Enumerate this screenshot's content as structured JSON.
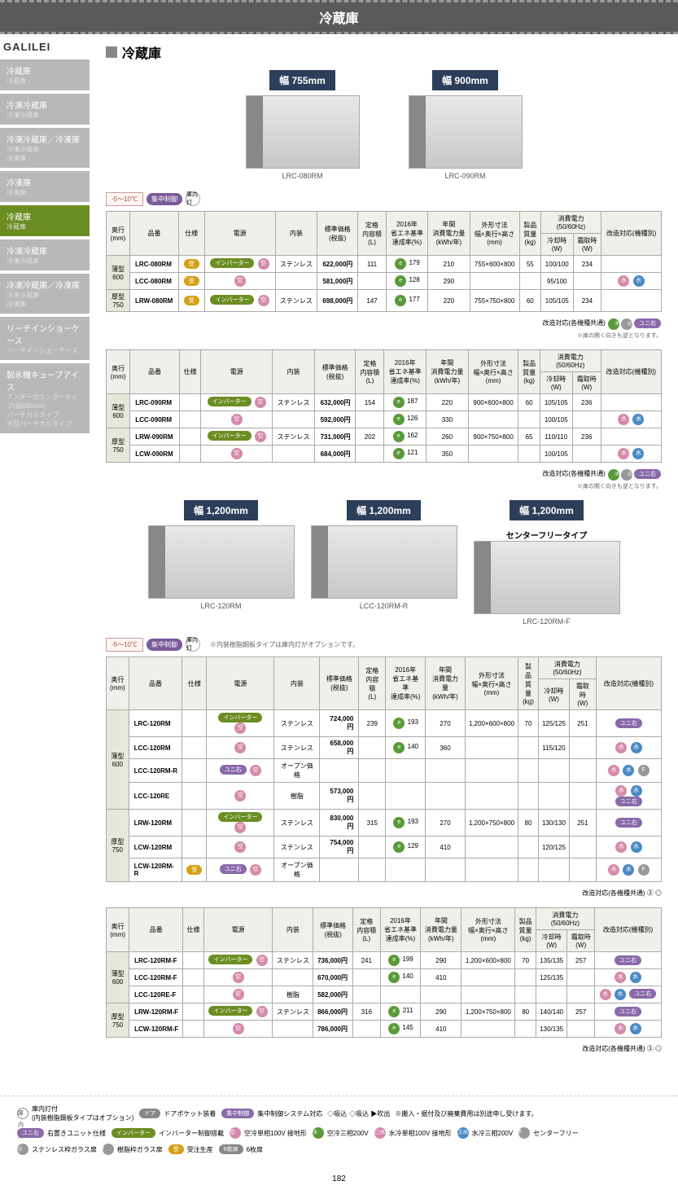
{
  "header": {
    "title": "冷蔵庫"
  },
  "brand": "GALILEI",
  "nav": [
    {
      "label": "冷蔵庫",
      "sub": "冷蔵庫",
      "active": false
    },
    {
      "label": "冷凍冷蔵庫",
      "sub": "冷凍冷蔵庫",
      "active": false
    },
    {
      "label": "冷凍冷蔵庫／冷凍庫",
      "sub": "冷凍冷蔵庫\n冷凍庫",
      "active": false
    },
    {
      "label": "冷凍庫",
      "sub": "冷凍庫",
      "active": false
    },
    {
      "label": "冷蔵庫",
      "sub": "冷蔵庫",
      "active": true
    },
    {
      "label": "冷凍冷蔵庫",
      "sub": "冷凍冷蔵庫",
      "active": false
    },
    {
      "label": "冷凍冷蔵庫／冷凍庫",
      "sub": "冷凍冷蔵庫\n冷凍庫",
      "active": false
    },
    {
      "label": "リーチインショーケース",
      "sub": "リーチインショーケース",
      "active": false
    },
    {
      "label": "製氷機キューブアイス",
      "sub": "アンダーカウンタータイプ(幅630mm)\nバーチカルタイプ\n大型バーチカルタイプ",
      "active": false
    }
  ],
  "section_title": "冷蔵庫",
  "temp_range": "-5〜10℃",
  "badge_purple": "集中制御",
  "badge_light": "庫内灯",
  "products_1": [
    {
      "width_label": "幅 755mm",
      "model": "LRC-080RM"
    },
    {
      "width_label": "幅 900mm",
      "model": "LRC-090RM"
    }
  ],
  "products_2": [
    {
      "width_label": "幅 1,200mm",
      "model": "LRC-120RM",
      "subtitle": ""
    },
    {
      "width_label": "幅 1,200mm",
      "model": "LCC-120RM-R",
      "subtitle": ""
    },
    {
      "width_label": "幅 1,200mm",
      "model": "LRC-120RM-F",
      "subtitle": "センターフリータイプ"
    }
  ],
  "cols": {
    "depth": "奥行\n(mm)",
    "model": "品番",
    "spec": "仕様",
    "power": "電源",
    "interior": "内装",
    "price": "標準価格\n(税抜)",
    "capacity": "定格\n内容積\n(L)",
    "energy": "2016年\n省エネ基準\n達成率(%)",
    "annual": "年間\n消費電力量\n(kWh/年)",
    "dims": "外形寸法\n幅×奥行×高さ\n(mm)",
    "weight": "製品\n質量\n(kg)",
    "power_consumption": "消費電力\n(50/60Hz)",
    "cooling": "冷却時\n(W)",
    "defrost": "霜取時\n(W)",
    "remodel": "改造対応(機種別)"
  },
  "table1": {
    "rows": [
      {
        "depth_group": "薄型\n600",
        "model": "LRC-080RM",
        "spec": [
          "受"
        ],
        "power": [
          "インバーター"
        ],
        "interior": "ステンレス",
        "price": "622,000円",
        "capacity": "111",
        "energy": "179",
        "annual": "210",
        "dims": "755×600×800",
        "weight": "55",
        "cool": "100/100",
        "defrost": "234",
        "remodel": ""
      },
      {
        "depth_group": "",
        "model": "LCC-080RM",
        "spec": [
          "受"
        ],
        "power": [],
        "interior": "",
        "price": "581,000円",
        "capacity": "",
        "energy": "128",
        "annual": "290",
        "dims": "",
        "weight": "",
        "cool": "95/100",
        "defrost": "",
        "remodel": "◎水 ③水"
      },
      {
        "depth_group": "厚型\n750",
        "model": "LRW-080RM",
        "spec": [
          "受"
        ],
        "power": [
          "インバーター"
        ],
        "interior": "ステンレス",
        "price": "698,000円",
        "capacity": "147",
        "energy": "177",
        "annual": "220",
        "dims": "755×750×800",
        "weight": "60",
        "cool": "105/105",
        "defrost": "234",
        "remodel": ""
      }
    ]
  },
  "table2": {
    "rows": [
      {
        "depth_group": "薄型\n600",
        "model": "LRC-090RM",
        "spec": [],
        "power": [
          "インバーター"
        ],
        "interior": "ステンレス",
        "price": "632,000円",
        "capacity": "154",
        "energy": "187",
        "annual": "220",
        "dims": "900×600×800",
        "weight": "60",
        "cool": "105/105",
        "defrost": "236",
        "remodel": ""
      },
      {
        "depth_group": "",
        "model": "LCC-090RM",
        "spec": [],
        "power": [],
        "interior": "",
        "price": "592,000円",
        "capacity": "",
        "energy": "126",
        "annual": "330",
        "dims": "",
        "weight": "",
        "cool": "100/105",
        "defrost": "",
        "remodel": "◎水 ③水"
      },
      {
        "depth_group": "厚型\n750",
        "model": "LRW-090RM",
        "spec": [],
        "power": [
          "インバーター"
        ],
        "interior": "ステンレス",
        "price": "731,000円",
        "capacity": "202",
        "energy": "162",
        "annual": "260",
        "dims": "900×750×800",
        "weight": "65",
        "cool": "110/110",
        "defrost": "236",
        "remodel": ""
      },
      {
        "depth_group": "",
        "model": "LCW-090RM",
        "spec": [],
        "power": [],
        "interior": "",
        "price": "684,000円",
        "capacity": "",
        "energy": "121",
        "annual": "350",
        "dims": "",
        "weight": "",
        "cool": "100/105",
        "defrost": "",
        "remodel": "◎水 ③水"
      }
    ]
  },
  "table3": {
    "rows": [
      {
        "depth_group": "薄型\n600",
        "model": "LRC-120RM",
        "spec": [],
        "power": [
          "インバーター"
        ],
        "interior": "ステンレス",
        "price": "724,000円",
        "capacity": "239",
        "energy": "193",
        "annual": "270",
        "dims": "1,200×600×800",
        "weight": "70",
        "cool": "125/125",
        "defrost": "251",
        "remodel": "ユニ右"
      },
      {
        "depth_group": "",
        "model": "LCC-120RM",
        "spec": [],
        "power": [],
        "interior": "ステンレス",
        "price": "658,000円",
        "capacity": "",
        "energy": "140",
        "annual": "360",
        "dims": "",
        "weight": "",
        "cool": "115/120",
        "defrost": "",
        "remodel": "◎水 ③水"
      },
      {
        "depth_group": "",
        "model": "LCC-120RM-R",
        "spec": [],
        "power": [
          "ユニ右"
        ],
        "interior": "オープン価格",
        "price": "",
        "capacity": "",
        "energy": "",
        "annual": "",
        "dims": "",
        "weight": "",
        "cool": "",
        "defrost": "",
        "remodel": "◎水 ③水 F"
      },
      {
        "depth_group": "",
        "model": "LCC-120RE",
        "spec": [],
        "power": [],
        "interior": "樹脂",
        "price": "573,000円",
        "capacity": "",
        "energy": "",
        "annual": "",
        "dims": "",
        "weight": "",
        "cool": "",
        "defrost": "",
        "remodel": "◎水 ③水 ユニ右"
      },
      {
        "depth_group": "厚型\n750",
        "model": "LRW-120RM",
        "spec": [],
        "power": [
          "インバーター"
        ],
        "interior": "ステンレス",
        "price": "830,000円",
        "capacity": "315",
        "energy": "193",
        "annual": "270",
        "dims": "1,200×750×800",
        "weight": "80",
        "cool": "130/130",
        "defrost": "251",
        "remodel": "ユニ右"
      },
      {
        "depth_group": "",
        "model": "LCW-120RM",
        "spec": [],
        "power": [],
        "interior": "ステンレス",
        "price": "754,000円",
        "capacity": "",
        "energy": "129",
        "annual": "410",
        "dims": "",
        "weight": "",
        "cool": "120/125",
        "defrost": "",
        "remodel": "◎水 ③水"
      },
      {
        "depth_group": "",
        "model": "LCW-120RM-R",
        "spec": [
          "受"
        ],
        "power": [
          "ユニ右"
        ],
        "interior": "オープン価格",
        "price": "",
        "capacity": "",
        "energy": "",
        "annual": "",
        "dims": "",
        "weight": "",
        "cool": "",
        "defrost": "",
        "remodel": "◎水 ③水 F"
      }
    ]
  },
  "table4": {
    "rows": [
      {
        "depth_group": "薄型\n600",
        "model": "LRC-120RM-F",
        "spec": [],
        "power": [
          "インバーター"
        ],
        "interior": "ステンレス",
        "price": "736,000円",
        "capacity": "241",
        "energy": "199",
        "annual": "290",
        "dims": "1,200×600×800",
        "weight": "70",
        "cool": "135/135",
        "defrost": "257",
        "remodel": "ユニ右"
      },
      {
        "depth_group": "",
        "model": "LCC-120RM-F",
        "spec": [],
        "power": [],
        "interior": "",
        "price": "670,000円",
        "capacity": "",
        "energy": "140",
        "annual": "410",
        "dims": "",
        "weight": "",
        "cool": "125/135",
        "defrost": "",
        "remodel": "◎水 ③水"
      },
      {
        "depth_group": "",
        "model": "LCC-120RE-F",
        "spec": [],
        "power": [],
        "interior": "樹脂",
        "price": "582,000円",
        "capacity": "",
        "energy": "",
        "annual": "",
        "dims": "",
        "weight": "",
        "cool": "",
        "defrost": "",
        "remodel": "◎水 ③水 ユニ右"
      },
      {
        "depth_group": "厚型\n750",
        "model": "LRW-120RM-F",
        "spec": [],
        "power": [
          "インバーター"
        ],
        "interior": "ステンレス",
        "price": "866,000円",
        "capacity": "316",
        "energy": "211",
        "annual": "290",
        "dims": "1,200×750×800",
        "weight": "80",
        "cool": "140/140",
        "defrost": "257",
        "remodel": "ユニ右"
      },
      {
        "depth_group": "",
        "model": "LCW-120RM-F",
        "spec": [],
        "power": [],
        "interior": "",
        "price": "786,000円",
        "capacity": "",
        "energy": "145",
        "annual": "410",
        "dims": "",
        "weight": "",
        "cool": "130/135",
        "defrost": "",
        "remodel": "◎水 ③水"
      }
    ]
  },
  "notes": {
    "n1": "改造対応(各機種共通)",
    "n1_badges": "③ ◎ ユニ右",
    "n1_sub": "※扉の開く向きも逆となります。",
    "n2": "改造対応(各機種共通)",
    "n3_pre": "※内装樹脂鋼板タイプは庫内灯がオプションです。",
    "n3": "改造対応(各機種共通) ③ ◎",
    "n4": "改造対応(各機種共通) ③ ◎"
  },
  "legend": {
    "row1": [
      {
        "class": "dot-white",
        "short": "庫内灯",
        "text": "庫内灯付\n(内装樹脂鋼板タイプはオプション)"
      },
      {
        "class": "pill-gray",
        "short": "ドア",
        "text": "ドアポケット装着"
      },
      {
        "class": "pill-purple",
        "short": "集中制御",
        "text": "集中制御システム対応"
      },
      {
        "class": "",
        "short": "◇吸込",
        "text": "◇吸込 ▶吹出"
      },
      {
        "class": "",
        "short": "",
        "text": "※搬入・据付及び廃棄費用は別途申し受けます。"
      }
    ],
    "row2": [
      {
        "class": "pill-purple",
        "short": "ユニ右",
        "text": "右置きユニット仕様"
      },
      {
        "class": "pill-green",
        "short": "インバーター",
        "text": "インバーター制御搭載"
      },
      {
        "class": "dot-pink",
        "short": "空",
        "text": "空冷単相100V 接地形"
      },
      {
        "class": "dot-green",
        "short": "③",
        "text": "空冷三相200V"
      },
      {
        "class": "dot-pink",
        "short": "◎水",
        "text": "水冷単相100V 接地形"
      },
      {
        "class": "dot-blue",
        "short": "③水",
        "text": "水冷三相200V"
      },
      {
        "class": "dot-gray",
        "short": "F",
        "text": "センターフリー"
      },
      {
        "class": "dot-gray",
        "short": "◎",
        "text": "ステンレス枠ガラス扉"
      },
      {
        "class": "dot-gray",
        "short": "I",
        "text": "樹脂枠ガラス扉"
      },
      {
        "class": "pill-orange",
        "short": "受",
        "text": "受注生産"
      },
      {
        "class": "pill-gray",
        "short": "6枚扉",
        "text": "6枚扉"
      }
    ]
  },
  "page_number": "182"
}
